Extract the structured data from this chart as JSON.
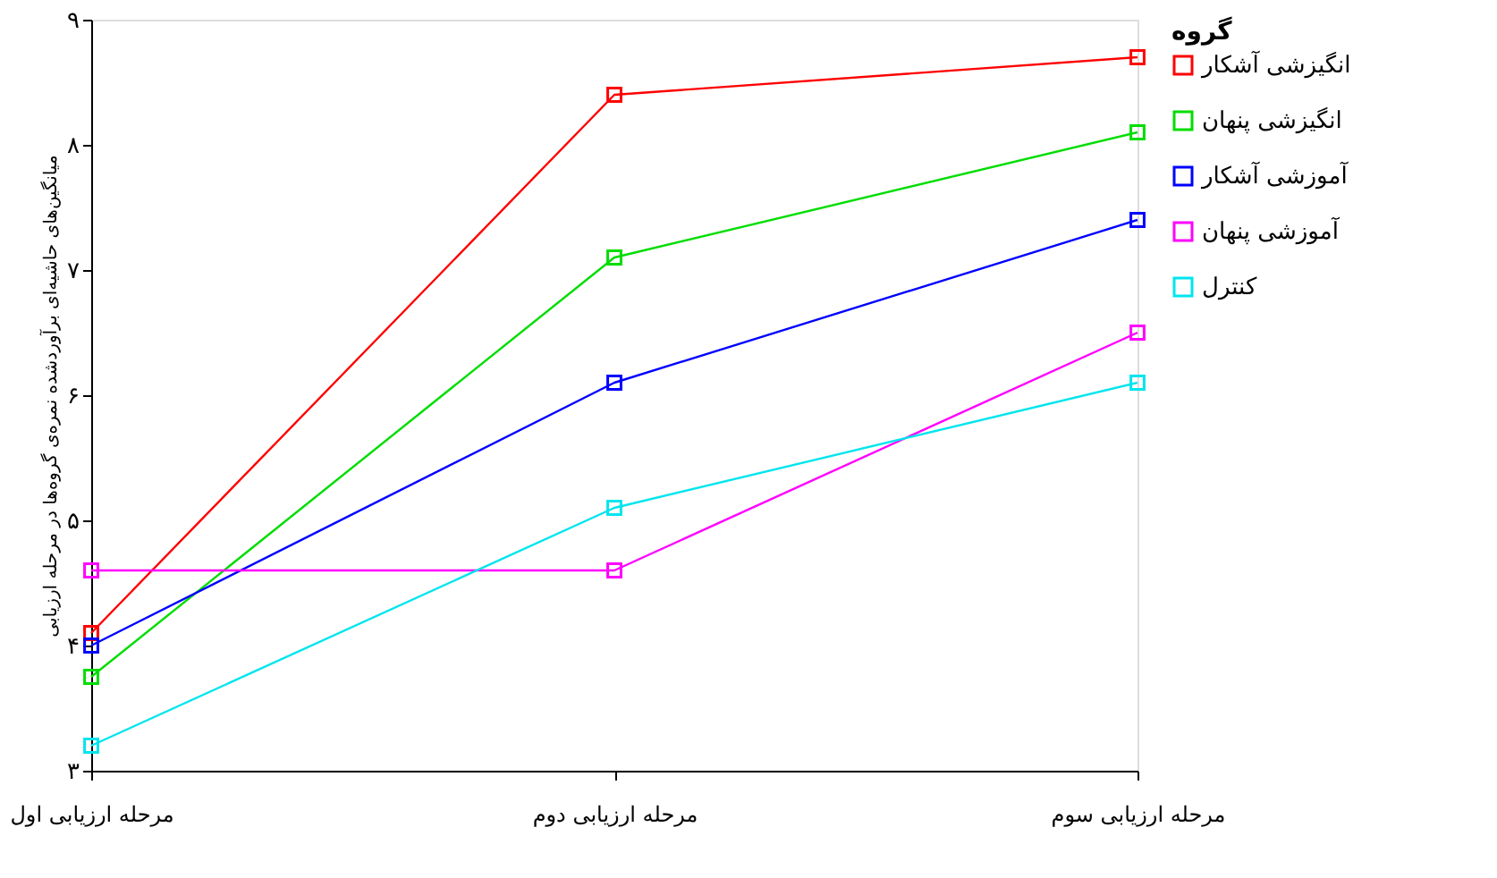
{
  "chart_data": {
    "type": "line",
    "ylabel": "میانگین‌های حاشیه‌ای برآوردشده نمره‌ی گروه‌ها در مرحله ارزیابی",
    "legend_title": "گروه",
    "categories": [
      "مرحله ارزیابی اول",
      "مرحله ارزیابی دوم",
      "مرحله ارزیابی سوم"
    ],
    "ylim": [
      3,
      9
    ],
    "yticks": [
      {
        "value": 3,
        "label": "۳"
      },
      {
        "value": 4,
        "label": "۴"
      },
      {
        "value": 5,
        "label": "۵"
      },
      {
        "value": 6,
        "label": "۶"
      },
      {
        "value": 7,
        "label": "۷"
      },
      {
        "value": 8,
        "label": "۸"
      },
      {
        "value": 9,
        "label": "۹"
      }
    ],
    "series": [
      {
        "name": "انگیزشی آشکار",
        "color": "#ff0000",
        "values": [
          4.1,
          8.4,
          8.7
        ]
      },
      {
        "name": "انگیزشی پنهان",
        "color": "#00dd00",
        "values": [
          3.75,
          7.1,
          8.1
        ]
      },
      {
        "name": "آموزشی آشکار",
        "color": "#0000ff",
        "values": [
          4.0,
          6.1,
          7.4
        ]
      },
      {
        "name": "آموزشی پنهان",
        "color": "#ff00ff",
        "values": [
          4.6,
          4.6,
          6.5
        ]
      },
      {
        "name": "کنترل",
        "color": "#00e5ee",
        "values": [
          3.2,
          5.1,
          6.1
        ]
      }
    ],
    "marker": "square",
    "grid": false,
    "legend": "right"
  }
}
